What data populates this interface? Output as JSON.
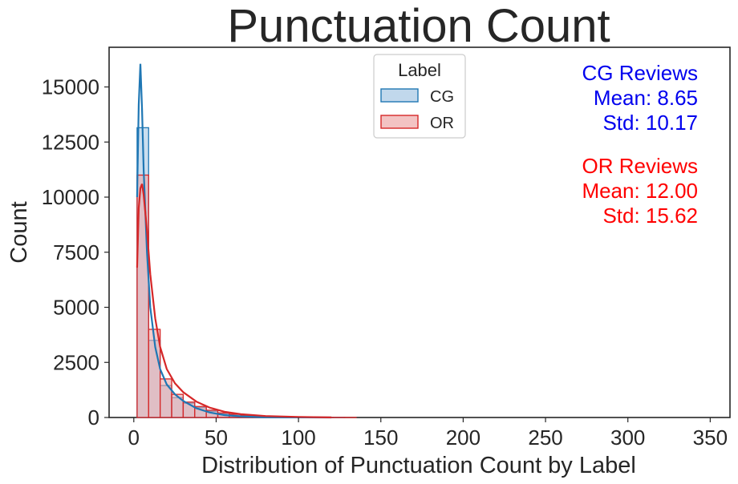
{
  "chart_data": {
    "type": "histogram",
    "title": "Punctuation Count",
    "xlabel": "Distribution of Punctuation Count by Label",
    "ylabel": "Count",
    "xlim": [
      -15,
      362
    ],
    "ylim": [
      0,
      16800
    ],
    "xticks": [
      0,
      50,
      100,
      150,
      200,
      250,
      300,
      350
    ],
    "xtick_labels": [
      "0",
      "50",
      "100",
      "150",
      "200",
      "250",
      "300",
      "350"
    ],
    "yticks": [
      0,
      2500,
      5000,
      7500,
      10000,
      12500,
      15000
    ],
    "ytick_labels": [
      "0",
      "2500",
      "5000",
      "7500",
      "10000",
      "12500",
      "15000"
    ],
    "grid": false,
    "bin_width": 7,
    "bin_start": 2,
    "series": [
      {
        "name": "CG",
        "color": "#1f77b4",
        "fill": "#a6c8e4",
        "counts": [
          13150,
          3500,
          1450,
          900,
          650,
          450,
          280,
          170,
          110,
          70,
          45,
          30,
          20,
          14,
          10,
          7,
          5,
          3
        ],
        "kde_x": [
          2,
          3,
          4,
          5,
          6,
          8,
          10,
          13,
          16,
          20,
          25,
          30,
          38,
          46,
          55,
          65,
          80,
          100,
          120
        ],
        "kde_y": [
          10000,
          14200,
          16050,
          14000,
          11200,
          7500,
          5000,
          3200,
          2200,
          1500,
          1050,
          750,
          420,
          230,
          110,
          50,
          15,
          5,
          0
        ]
      },
      {
        "name": "OR",
        "color": "#d62728",
        "fill": "#eea9a9",
        "counts": [
          11000,
          4000,
          1750,
          1050,
          700,
          500,
          330,
          210,
          150,
          100,
          70,
          50,
          35,
          25,
          18,
          12,
          8,
          5,
          3
        ],
        "kde_x": [
          2,
          3,
          4,
          5,
          6,
          8,
          10,
          13,
          16,
          20,
          25,
          30,
          38,
          46,
          55,
          65,
          80,
          100,
          120
        ],
        "kde_y": [
          6800,
          9500,
          10400,
          10600,
          10100,
          8500,
          6500,
          4500,
          3200,
          2200,
          1550,
          1150,
          720,
          450,
          260,
          150,
          65,
          25,
          5
        ]
      }
    ],
    "legend": {
      "title": "Label",
      "placement": "top-center",
      "entries": [
        "CG",
        "OR"
      ]
    },
    "annotations": [
      {
        "color": "#0000ee",
        "lines": [
          "CG Reviews",
          "Mean: 8.65",
          "Std: 10.17"
        ]
      },
      {
        "color": "#ff0000",
        "lines": [
          "OR Reviews",
          "Mean: 12.00",
          "Std: 15.62"
        ]
      }
    ]
  }
}
